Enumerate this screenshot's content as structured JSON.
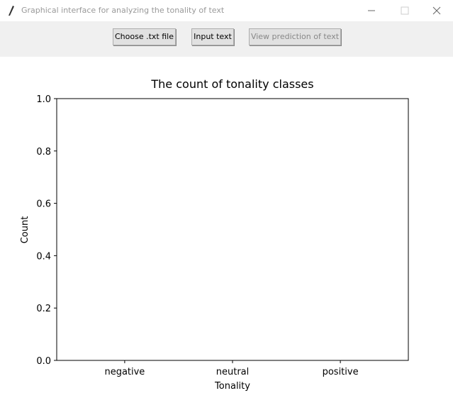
{
  "window": {
    "title": "Graphical interface for analyzing the tonality of text",
    "buttons": [
      "Choose .txt file",
      "Input text",
      "View prediction of text"
    ]
  },
  "chart_data": {
    "type": "bar",
    "title": "The count of tonality classes",
    "categories": [
      "negative",
      "neutral",
      "positive"
    ],
    "values": [
      0,
      0,
      0
    ],
    "color": "#1f77b4",
    "x_label": "Tonality",
    "y_label": "Count",
    "ylim": [
      0,
      1
    ],
    "yticks": [
      {
        "value": 0,
        "label": "0.0"
      },
      {
        "value": 0.2,
        "label": "0.2"
      },
      {
        "value": 0.4,
        "label": "0.4"
      },
      {
        "value": 0.6,
        "label": "0.6"
      },
      {
        "value": 0.8,
        "label": "0.8"
      },
      {
        "value": 1,
        "label": "1.0"
      }
    ]
  }
}
